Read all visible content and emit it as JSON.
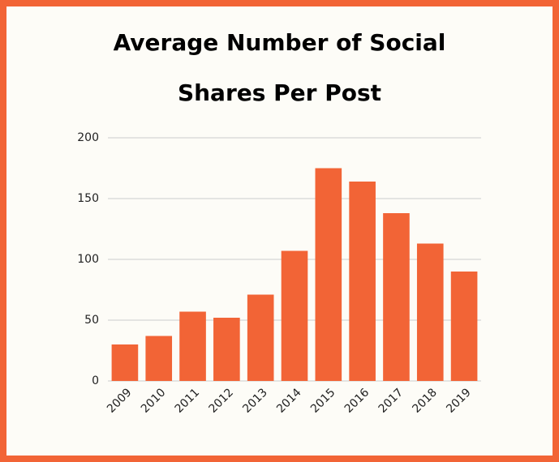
{
  "chart_data": {
    "type": "bar",
    "title": "Average Number of Social Shares Per Post",
    "categories": [
      "2009",
      "2010",
      "2011",
      "2012",
      "2013",
      "2014",
      "2015",
      "2016",
      "2017",
      "2018",
      "2019"
    ],
    "values": [
      30,
      37,
      57,
      52,
      71,
      107,
      175,
      164,
      138,
      113,
      90
    ],
    "color": "#f26436",
    "ylim": [
      0,
      200
    ],
    "yticks": [
      0,
      50,
      100,
      150,
      200
    ],
    "grid": true
  }
}
